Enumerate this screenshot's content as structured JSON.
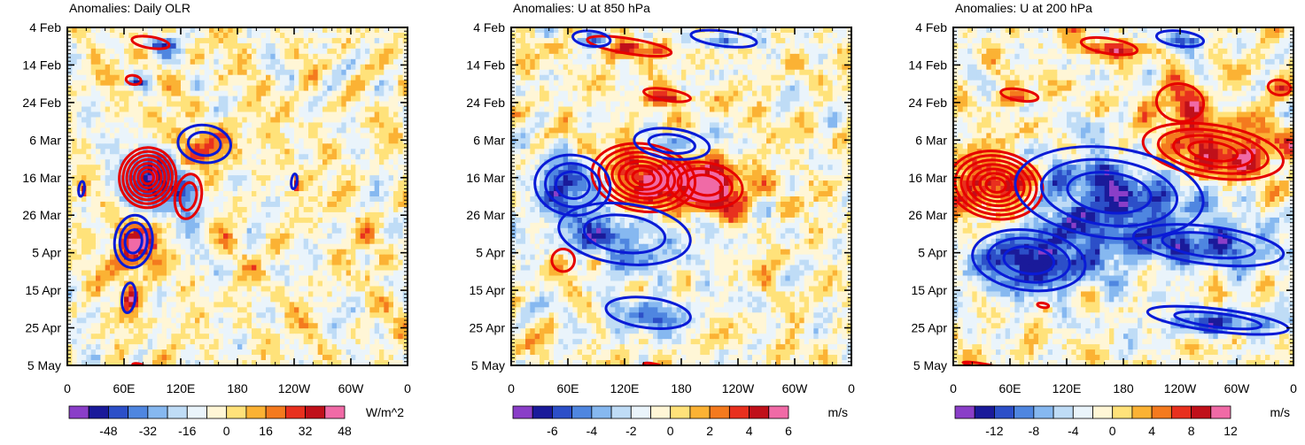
{
  "shared_axes": {
    "y_tick_labels": [
      "4 Feb",
      "14 Feb",
      "24 Feb",
      "6 Mar",
      "16 Mar",
      "26 Mar",
      "5 Apr",
      "15 Apr",
      "25 Apr",
      "5 May"
    ],
    "x_tick_labels": [
      "0",
      "60E",
      "120E",
      "180",
      "120W",
      "60W",
      "0"
    ],
    "x_range_deg_east": [
      0,
      360
    ],
    "y_range": [
      "4 Feb",
      "5 May"
    ]
  },
  "palette": [
    "#8a3ec8",
    "#1a1a9a",
    "#2c4fc8",
    "#4f86e0",
    "#86b8f0",
    "#bfdcf6",
    "#eaf4fb",
    "#fff6d6",
    "#ffe27a",
    "#fbb234",
    "#f47a1e",
    "#e8301e",
    "#c0101a",
    "#f06aa6"
  ],
  "contour_colors": {
    "positive": "#e60000",
    "negative": "#0a1bd6"
  },
  "chart_data": [
    {
      "type": "heatmap",
      "title": "Anomalies: Daily OLR",
      "units": "W/m^2",
      "colorbar_labels": [
        "-48",
        "-32",
        "-16",
        "0",
        "16",
        "32",
        "48"
      ],
      "colorbar_levels": [
        -56,
        -48,
        -40,
        -32,
        -24,
        -16,
        -8,
        0,
        8,
        16,
        24,
        32,
        40,
        48,
        56
      ],
      "contours_positive": [
        {
          "lon": 85,
          "day": 40,
          "r_lon": 30,
          "r_day": 8,
          "n": 7
        },
        {
          "lon": 128,
          "day": 45,
          "r_lon": 14,
          "r_day": 6,
          "n": 2
        },
        {
          "lon": 88,
          "day": 4,
          "r_lon": 20,
          "r_day": 1.5,
          "n": 1
        },
        {
          "lon": 70,
          "day": 14,
          "r_lon": 8,
          "r_day": 1.2,
          "n": 1
        },
        {
          "lon": 75,
          "day": 90,
          "r_lon": 6,
          "r_day": 0.5,
          "n": 1
        }
      ],
      "contours_negative": [
        {
          "lon": 70,
          "day": 57,
          "r_lon": 20,
          "r_day": 7,
          "n": 3
        },
        {
          "lon": 145,
          "day": 31,
          "r_lon": 28,
          "r_day": 5,
          "n": 2
        },
        {
          "lon": 65,
          "day": 72,
          "r_lon": 7,
          "r_day": 4,
          "n": 1
        },
        {
          "lon": 240,
          "day": 41,
          "r_lon": 3,
          "r_day": 2,
          "n": 1
        },
        {
          "lon": 15,
          "day": 43,
          "r_lon": 3,
          "r_day": 2,
          "n": 1
        }
      ]
    },
    {
      "type": "heatmap",
      "title": "Anomalies: U at 850 hPa",
      "units": "m/s",
      "colorbar_labels": [
        "-6",
        "-4",
        "-2",
        "0",
        "2",
        "4",
        "6"
      ],
      "colorbar_levels": [
        -7,
        -6,
        -5,
        -4,
        -3,
        -2,
        -1,
        0,
        1,
        2,
        3,
        4,
        5,
        6,
        7
      ],
      "contours_positive": [
        {
          "lon": 140,
          "day": 40,
          "r_lon": 55,
          "r_day": 9,
          "n": 7
        },
        {
          "lon": 205,
          "day": 42,
          "r_lon": 40,
          "r_day": 6,
          "n": 3
        },
        {
          "lon": 125,
          "day": 5,
          "r_lon": 45,
          "r_day": 2,
          "n": 1
        },
        {
          "lon": 165,
          "day": 18,
          "r_lon": 25,
          "r_day": 1.5,
          "n": 1
        },
        {
          "lon": 55,
          "day": 62,
          "r_lon": 12,
          "r_day": 3,
          "n": 1
        },
        {
          "lon": 150,
          "day": 90,
          "r_lon": 10,
          "r_day": 0.5,
          "n": 1
        }
      ],
      "contours_negative": [
        {
          "lon": 65,
          "day": 42,
          "r_lon": 40,
          "r_day": 8,
          "n": 3
        },
        {
          "lon": 120,
          "day": 55,
          "r_lon": 70,
          "r_day": 8,
          "n": 2
        },
        {
          "lon": 170,
          "day": 31,
          "r_lon": 40,
          "r_day": 4,
          "n": 2
        },
        {
          "lon": 85,
          "day": 3,
          "r_lon": 20,
          "r_day": 2,
          "n": 1
        },
        {
          "lon": 225,
          "day": 3,
          "r_lon": 35,
          "r_day": 2,
          "n": 1
        },
        {
          "lon": 145,
          "day": 76,
          "r_lon": 45,
          "r_day": 4,
          "n": 1
        }
      ]
    },
    {
      "type": "heatmap",
      "title": "Anomalies: U at 200 hPa",
      "units": "m/s",
      "colorbar_labels": [
        "-12",
        "-8",
        "-4",
        "0",
        "4",
        "8",
        "12"
      ],
      "colorbar_levels": [
        -14,
        -12,
        -10,
        -8,
        -6,
        -4,
        -2,
        0,
        2,
        4,
        6,
        8,
        10,
        12,
        14
      ],
      "contours_positive": [
        {
          "lon": 45,
          "day": 42,
          "r_lon": 50,
          "r_day": 9,
          "n": 7
        },
        {
          "lon": 275,
          "day": 33,
          "r_lon": 75,
          "r_day": 7,
          "n": 4
        },
        {
          "lon": 240,
          "day": 20,
          "r_lon": 25,
          "r_day": 5,
          "n": 1
        },
        {
          "lon": 165,
          "day": 5,
          "r_lon": 30,
          "r_day": 2,
          "n": 1
        },
        {
          "lon": 70,
          "day": 18,
          "r_lon": 20,
          "r_day": 1.5,
          "n": 1
        },
        {
          "lon": 345,
          "day": 16,
          "r_lon": 12,
          "r_day": 2,
          "n": 1
        },
        {
          "lon": 95,
          "day": 74,
          "r_lon": 6,
          "r_day": 0.6,
          "n": 1
        },
        {
          "lon": 30,
          "day": 90,
          "r_lon": 20,
          "r_day": 0.5,
          "n": 1
        }
      ],
      "contours_negative": [
        {
          "lon": 165,
          "day": 44,
          "r_lon": 100,
          "r_day": 12,
          "n": 3
        },
        {
          "lon": 80,
          "day": 62,
          "r_lon": 60,
          "r_day": 8,
          "n": 3
        },
        {
          "lon": 270,
          "day": 58,
          "r_lon": 80,
          "r_day": 5,
          "n": 2
        },
        {
          "lon": 240,
          "day": 3,
          "r_lon": 25,
          "r_day": 2,
          "n": 1
        },
        {
          "lon": 280,
          "day": 78,
          "r_lon": 75,
          "r_day": 3,
          "n": 2
        }
      ]
    }
  ]
}
